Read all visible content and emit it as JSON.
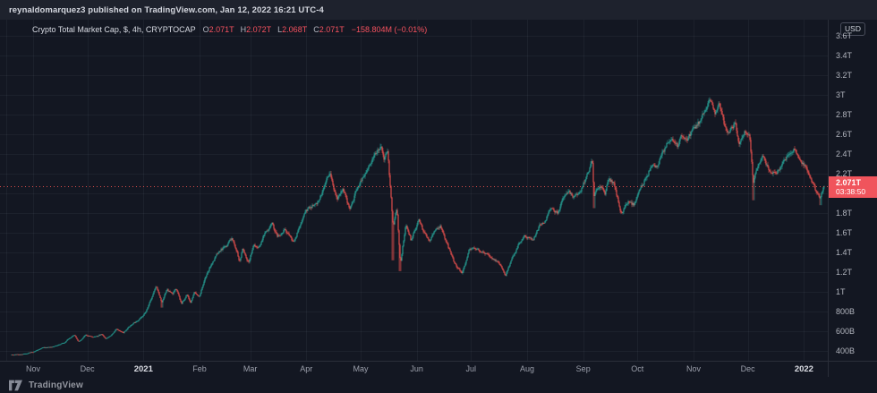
{
  "header": {
    "published": "reynaldomarquez3 published on TradingView.com, Jan 12, 2022 16:21 UTC-4"
  },
  "legend": {
    "title": "Crypto Total Market Cap, $, 4h, CRYPTOCAP",
    "ohlc": [
      {
        "label": "O",
        "value": "2.071T"
      },
      {
        "label": "H",
        "value": "2.072T"
      },
      {
        "label": "L",
        "value": "2.068T"
      },
      {
        "label": "C",
        "value": "2.071T"
      }
    ],
    "change": "−158.804M (−0.01%)"
  },
  "price_axis": {
    "currency": "USD",
    "labels": [
      {
        "text": "3.6T",
        "value": 3.6
      },
      {
        "text": "3.4T",
        "value": 3.4
      },
      {
        "text": "3.2T",
        "value": 3.2
      },
      {
        "text": "3T",
        "value": 3.0
      },
      {
        "text": "2.8T",
        "value": 2.8
      },
      {
        "text": "2.6T",
        "value": 2.6
      },
      {
        "text": "2.4T",
        "value": 2.4
      },
      {
        "text": "2.2T",
        "value": 2.2
      },
      {
        "text": "1.8T",
        "value": 1.8
      },
      {
        "text": "1.6T",
        "value": 1.6
      },
      {
        "text": "1.4T",
        "value": 1.4
      },
      {
        "text": "1.2T",
        "value": 1.2
      },
      {
        "text": "1T",
        "value": 1.0
      },
      {
        "text": "800B",
        "value": 0.8
      },
      {
        "text": "600B",
        "value": 0.6
      },
      {
        "text": "400B",
        "value": 0.4
      }
    ],
    "last_price": {
      "text": "2.071T",
      "countdown": "03:38:50",
      "value": 2.071
    }
  },
  "time_axis": {
    "ticks": [
      {
        "label": "Nov",
        "date": "2020-11-01",
        "major": false
      },
      {
        "label": "Dec",
        "date": "2020-12-01",
        "major": false
      },
      {
        "label": "2021",
        "date": "2021-01-01",
        "major": true
      },
      {
        "label": "Feb",
        "date": "2021-02-01",
        "major": false
      },
      {
        "label": "Mar",
        "date": "2021-03-01",
        "major": false
      },
      {
        "label": "Apr",
        "date": "2021-04-01",
        "major": false
      },
      {
        "label": "May",
        "date": "2021-05-01",
        "major": false
      },
      {
        "label": "Jun",
        "date": "2021-06-01",
        "major": false
      },
      {
        "label": "Jul",
        "date": "2021-07-01",
        "major": false
      },
      {
        "label": "Aug",
        "date": "2021-08-01",
        "major": false
      },
      {
        "label": "Sep",
        "date": "2021-09-01",
        "major": false
      },
      {
        "label": "Oct",
        "date": "2021-10-01",
        "major": false
      },
      {
        "label": "Nov",
        "date": "2021-11-01",
        "major": false
      },
      {
        "label": "Dec",
        "date": "2021-12-01",
        "major": false
      },
      {
        "label": "2022",
        "date": "2022-01-01",
        "major": true
      }
    ]
  },
  "footer": {
    "brand": "TradingView"
  },
  "colors": {
    "background": "#131722",
    "topbar_bg": "#1e222d",
    "grid": "rgba(160,166,180,0.07)",
    "axis_border": "#2a2e39",
    "up": "#26a69a",
    "down": "#f0524f",
    "red_value": "#f7525f",
    "price_tag_bg": "#f0545c",
    "text": "#b2b5be",
    "bright_text": "#d1d4dc"
  },
  "chart_data": {
    "type": "candlestick",
    "title": "Crypto Total Market Cap",
    "symbol": "CRYPTOCAP",
    "currency": "USD",
    "interval": "4h",
    "y_unit": "USD (T = trillion, B = billion)",
    "ylim": [
      0.35,
      3.7
    ],
    "last_close": 2.071,
    "grid": true,
    "price_line_value": 2.071,
    "points": [
      [
        "2020-10-20",
        0.36
      ],
      [
        "2020-10-26",
        0.365
      ],
      [
        "2020-11-01",
        0.39
      ],
      [
        "2020-11-06",
        0.43
      ],
      [
        "2020-11-12",
        0.44
      ],
      [
        "2020-11-18",
        0.48
      ],
      [
        "2020-11-24",
        0.565
      ],
      [
        "2020-11-26",
        0.49
      ],
      [
        "2020-11-30",
        0.56
      ],
      [
        "2020-12-05",
        0.54
      ],
      [
        "2020-12-09",
        0.57
      ],
      [
        "2020-12-11",
        0.52
      ],
      [
        "2020-12-14",
        0.55
      ],
      [
        "2020-12-17",
        0.62
      ],
      [
        "2020-12-21",
        0.59
      ],
      [
        "2020-12-25",
        0.66
      ],
      [
        "2020-12-28",
        0.7
      ],
      [
        "2021-01-01",
        0.76
      ],
      [
        "2021-01-04",
        0.87
      ],
      [
        "2021-01-06",
        0.95
      ],
      [
        "2021-01-08",
        1.07
      ],
      [
        "2021-01-11",
        0.89
      ],
      [
        "2021-01-14",
        1.02
      ],
      [
        "2021-01-17",
        0.97
      ],
      [
        "2021-01-19",
        1.03
      ],
      [
        "2021-01-22",
        0.88
      ],
      [
        "2021-01-25",
        0.97
      ],
      [
        "2021-01-27",
        0.9
      ],
      [
        "2021-01-29",
        1.0
      ],
      [
        "2021-02-01",
        0.96
      ],
      [
        "2021-02-05",
        1.18
      ],
      [
        "2021-02-08",
        1.3
      ],
      [
        "2021-02-12",
        1.42
      ],
      [
        "2021-02-16",
        1.47
      ],
      [
        "2021-02-19",
        1.55
      ],
      [
        "2021-02-23",
        1.32
      ],
      [
        "2021-02-25",
        1.44
      ],
      [
        "2021-02-28",
        1.3
      ],
      [
        "2021-03-03",
        1.48
      ],
      [
        "2021-03-06",
        1.45
      ],
      [
        "2021-03-09",
        1.6
      ],
      [
        "2021-03-13",
        1.69
      ],
      [
        "2021-03-16",
        1.56
      ],
      [
        "2021-03-20",
        1.63
      ],
      [
        "2021-03-25",
        1.5
      ],
      [
        "2021-03-29",
        1.7
      ],
      [
        "2021-04-02",
        1.85
      ],
      [
        "2021-04-07",
        1.9
      ],
      [
        "2021-04-10",
        2.02
      ],
      [
        "2021-04-14",
        2.22
      ],
      [
        "2021-04-18",
        1.93
      ],
      [
        "2021-04-21",
        2.05
      ],
      [
        "2021-04-25",
        1.82
      ],
      [
        "2021-04-29",
        2.05
      ],
      [
        "2021-05-04",
        2.2
      ],
      [
        "2021-05-08",
        2.38
      ],
      [
        "2021-05-12",
        2.48
      ],
      [
        "2021-05-14",
        2.35
      ],
      [
        "2021-05-16",
        2.42
      ],
      [
        "2021-05-19",
        1.65
      ],
      [
        "2021-05-21",
        1.85
      ],
      [
        "2021-05-23",
        1.28
      ],
      [
        "2021-05-26",
        1.7
      ],
      [
        "2021-05-29",
        1.52
      ],
      [
        "2021-06-02",
        1.72
      ],
      [
        "2021-06-05",
        1.6
      ],
      [
        "2021-06-08",
        1.5
      ],
      [
        "2021-06-11",
        1.62
      ],
      [
        "2021-06-14",
        1.66
      ],
      [
        "2021-06-18",
        1.48
      ],
      [
        "2021-06-22",
        1.28
      ],
      [
        "2021-06-26",
        1.18
      ],
      [
        "2021-06-30",
        1.42
      ],
      [
        "2021-07-04",
        1.44
      ],
      [
        "2021-07-07",
        1.4
      ],
      [
        "2021-07-10",
        1.38
      ],
      [
        "2021-07-14",
        1.32
      ],
      [
        "2021-07-17",
        1.28
      ],
      [
        "2021-07-20",
        1.17
      ],
      [
        "2021-07-24",
        1.35
      ],
      [
        "2021-07-27",
        1.48
      ],
      [
        "2021-07-31",
        1.57
      ],
      [
        "2021-08-04",
        1.52
      ],
      [
        "2021-08-08",
        1.67
      ],
      [
        "2021-08-11",
        1.72
      ],
      [
        "2021-08-14",
        1.86
      ],
      [
        "2021-08-18",
        1.8
      ],
      [
        "2021-08-21",
        1.95
      ],
      [
        "2021-08-24",
        2.02
      ],
      [
        "2021-08-27",
        1.96
      ],
      [
        "2021-08-31",
        2.05
      ],
      [
        "2021-09-03",
        2.18
      ],
      [
        "2021-09-06",
        2.33
      ],
      [
        "2021-09-07",
        1.97
      ],
      [
        "2021-09-10",
        2.08
      ],
      [
        "2021-09-13",
        2.0
      ],
      [
        "2021-09-15",
        2.15
      ],
      [
        "2021-09-18",
        2.1
      ],
      [
        "2021-09-22",
        1.8
      ],
      [
        "2021-09-26",
        1.92
      ],
      [
        "2021-09-29",
        1.88
      ],
      [
        "2021-10-01",
        1.96
      ],
      [
        "2021-10-04",
        2.1
      ],
      [
        "2021-10-08",
        2.25
      ],
      [
        "2021-10-12",
        2.28
      ],
      [
        "2021-10-15",
        2.42
      ],
      [
        "2021-10-20",
        2.58
      ],
      [
        "2021-10-23",
        2.48
      ],
      [
        "2021-10-26",
        2.6
      ],
      [
        "2021-10-28",
        2.52
      ],
      [
        "2021-11-01",
        2.66
      ],
      [
        "2021-11-04",
        2.72
      ],
      [
        "2021-11-08",
        2.88
      ],
      [
        "2021-11-10",
        2.96
      ],
      [
        "2021-11-13",
        2.82
      ],
      [
        "2021-11-15",
        2.9
      ],
      [
        "2021-11-18",
        2.7
      ],
      [
        "2021-11-21",
        2.62
      ],
      [
        "2021-11-24",
        2.72
      ],
      [
        "2021-11-26",
        2.52
      ],
      [
        "2021-11-29",
        2.62
      ],
      [
        "2021-12-02",
        2.58
      ],
      [
        "2021-12-04",
        2.12
      ],
      [
        "2021-12-07",
        2.3
      ],
      [
        "2021-12-09",
        2.38
      ],
      [
        "2021-12-13",
        2.22
      ],
      [
        "2021-12-17",
        2.22
      ],
      [
        "2021-12-21",
        2.32
      ],
      [
        "2021-12-24",
        2.42
      ],
      [
        "2021-12-27",
        2.45
      ],
      [
        "2021-12-30",
        2.32
      ],
      [
        "2022-01-02",
        2.28
      ],
      [
        "2022-01-05",
        2.12
      ],
      [
        "2022-01-07",
        2.05
      ],
      [
        "2022-01-10",
        1.92
      ],
      [
        "2022-01-11",
        2.02
      ],
      [
        "2022-01-12",
        2.071
      ]
    ],
    "wick_lows": [
      [
        "2021-01-11",
        0.84
      ],
      [
        "2021-05-19",
        1.32
      ],
      [
        "2021-05-23",
        1.21
      ],
      [
        "2021-09-07",
        1.85
      ],
      [
        "2021-12-04",
        1.93
      ],
      [
        "2022-01-10",
        1.88
      ]
    ]
  }
}
